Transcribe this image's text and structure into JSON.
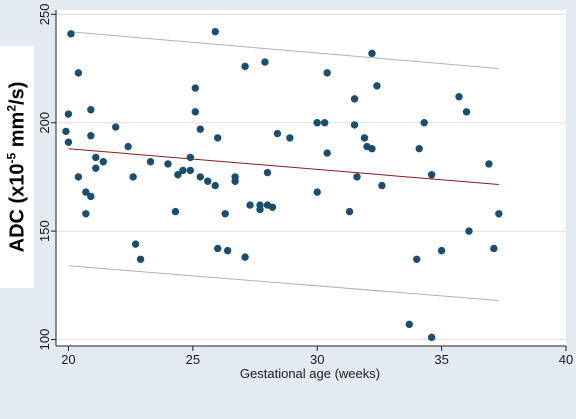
{
  "chart_data": {
    "type": "scatter",
    "title": "",
    "xlabel": "Gestational age (weeks)",
    "ylabel": {
      "prefix": "ADC (x10",
      "exp1": "-5",
      "middle": " mm",
      "exp2": "2",
      "suffix": "/s)"
    },
    "xlim": [
      19.5,
      40
    ],
    "ylim": [
      97,
      252
    ],
    "x_ticks": [
      20,
      25,
      30,
      35,
      40
    ],
    "y_ticks": [
      100,
      150,
      200,
      250
    ],
    "grid": "horizontal",
    "colors": {
      "points": "#1a4d6e",
      "fit_line": "#8b1a1a",
      "bounds": "#b0b0b0",
      "gridline": "#dddddd",
      "plot_bg": "#ffffff",
      "page_bg": "#e3eaf1"
    },
    "fit_line": {
      "x": [
        20,
        37.3
      ],
      "y": [
        188,
        171.5
      ]
    },
    "upper_bound": {
      "x": [
        20,
        37.3
      ],
      "y": [
        242,
        225
      ]
    },
    "lower_bound": {
      "x": [
        20,
        37.3
      ],
      "y": [
        134,
        118
      ]
    },
    "points": [
      {
        "x": 19.9,
        "y": 196
      },
      {
        "x": 20.0,
        "y": 204
      },
      {
        "x": 20.0,
        "y": 191
      },
      {
        "x": 20.1,
        "y": 241
      },
      {
        "x": 20.4,
        "y": 223
      },
      {
        "x": 20.4,
        "y": 175
      },
      {
        "x": 20.7,
        "y": 168
      },
      {
        "x": 20.7,
        "y": 158
      },
      {
        "x": 20.9,
        "y": 206
      },
      {
        "x": 20.9,
        "y": 194
      },
      {
        "x": 20.9,
        "y": 166
      },
      {
        "x": 21.1,
        "y": 179
      },
      {
        "x": 21.1,
        "y": 184
      },
      {
        "x": 21.4,
        "y": 182
      },
      {
        "x": 21.9,
        "y": 198
      },
      {
        "x": 22.4,
        "y": 189
      },
      {
        "x": 22.6,
        "y": 175
      },
      {
        "x": 22.7,
        "y": 144
      },
      {
        "x": 22.9,
        "y": 137
      },
      {
        "x": 23.3,
        "y": 182
      },
      {
        "x": 24.0,
        "y": 181
      },
      {
        "x": 24.3,
        "y": 159
      },
      {
        "x": 24.4,
        "y": 176
      },
      {
        "x": 24.6,
        "y": 178
      },
      {
        "x": 24.9,
        "y": 184
      },
      {
        "x": 24.9,
        "y": 178
      },
      {
        "x": 25.1,
        "y": 216
      },
      {
        "x": 25.1,
        "y": 205
      },
      {
        "x": 25.3,
        "y": 197
      },
      {
        "x": 25.3,
        "y": 175
      },
      {
        "x": 25.6,
        "y": 173
      },
      {
        "x": 25.9,
        "y": 242
      },
      {
        "x": 25.9,
        "y": 171
      },
      {
        "x": 26.0,
        "y": 193
      },
      {
        "x": 26.0,
        "y": 142
      },
      {
        "x": 26.3,
        "y": 158
      },
      {
        "x": 26.4,
        "y": 141
      },
      {
        "x": 26.7,
        "y": 175
      },
      {
        "x": 26.7,
        "y": 173
      },
      {
        "x": 27.1,
        "y": 226
      },
      {
        "x": 27.1,
        "y": 138
      },
      {
        "x": 27.3,
        "y": 162
      },
      {
        "x": 27.7,
        "y": 162
      },
      {
        "x": 27.7,
        "y": 160
      },
      {
        "x": 27.9,
        "y": 228
      },
      {
        "x": 28.0,
        "y": 177
      },
      {
        "x": 28.0,
        "y": 162
      },
      {
        "x": 28.2,
        "y": 161
      },
      {
        "x": 28.4,
        "y": 195
      },
      {
        "x": 28.9,
        "y": 193
      },
      {
        "x": 30.0,
        "y": 200
      },
      {
        "x": 30.0,
        "y": 168
      },
      {
        "x": 30.3,
        "y": 200
      },
      {
        "x": 30.4,
        "y": 223
      },
      {
        "x": 30.4,
        "y": 186
      },
      {
        "x": 31.3,
        "y": 159
      },
      {
        "x": 31.5,
        "y": 211
      },
      {
        "x": 31.5,
        "y": 199
      },
      {
        "x": 31.6,
        "y": 175
      },
      {
        "x": 31.9,
        "y": 193
      },
      {
        "x": 32.0,
        "y": 189
      },
      {
        "x": 32.2,
        "y": 188
      },
      {
        "x": 32.2,
        "y": 232
      },
      {
        "x": 32.4,
        "y": 217
      },
      {
        "x": 32.6,
        "y": 171
      },
      {
        "x": 33.7,
        "y": 107
      },
      {
        "x": 34.0,
        "y": 137
      },
      {
        "x": 34.1,
        "y": 188
      },
      {
        "x": 34.3,
        "y": 200
      },
      {
        "x": 34.6,
        "y": 176
      },
      {
        "x": 34.6,
        "y": 101
      },
      {
        "x": 35.0,
        "y": 141
      },
      {
        "x": 35.7,
        "y": 212
      },
      {
        "x": 36.0,
        "y": 205
      },
      {
        "x": 36.1,
        "y": 150
      },
      {
        "x": 36.9,
        "y": 181
      },
      {
        "x": 37.1,
        "y": 142
      },
      {
        "x": 37.3,
        "y": 158
      }
    ]
  }
}
